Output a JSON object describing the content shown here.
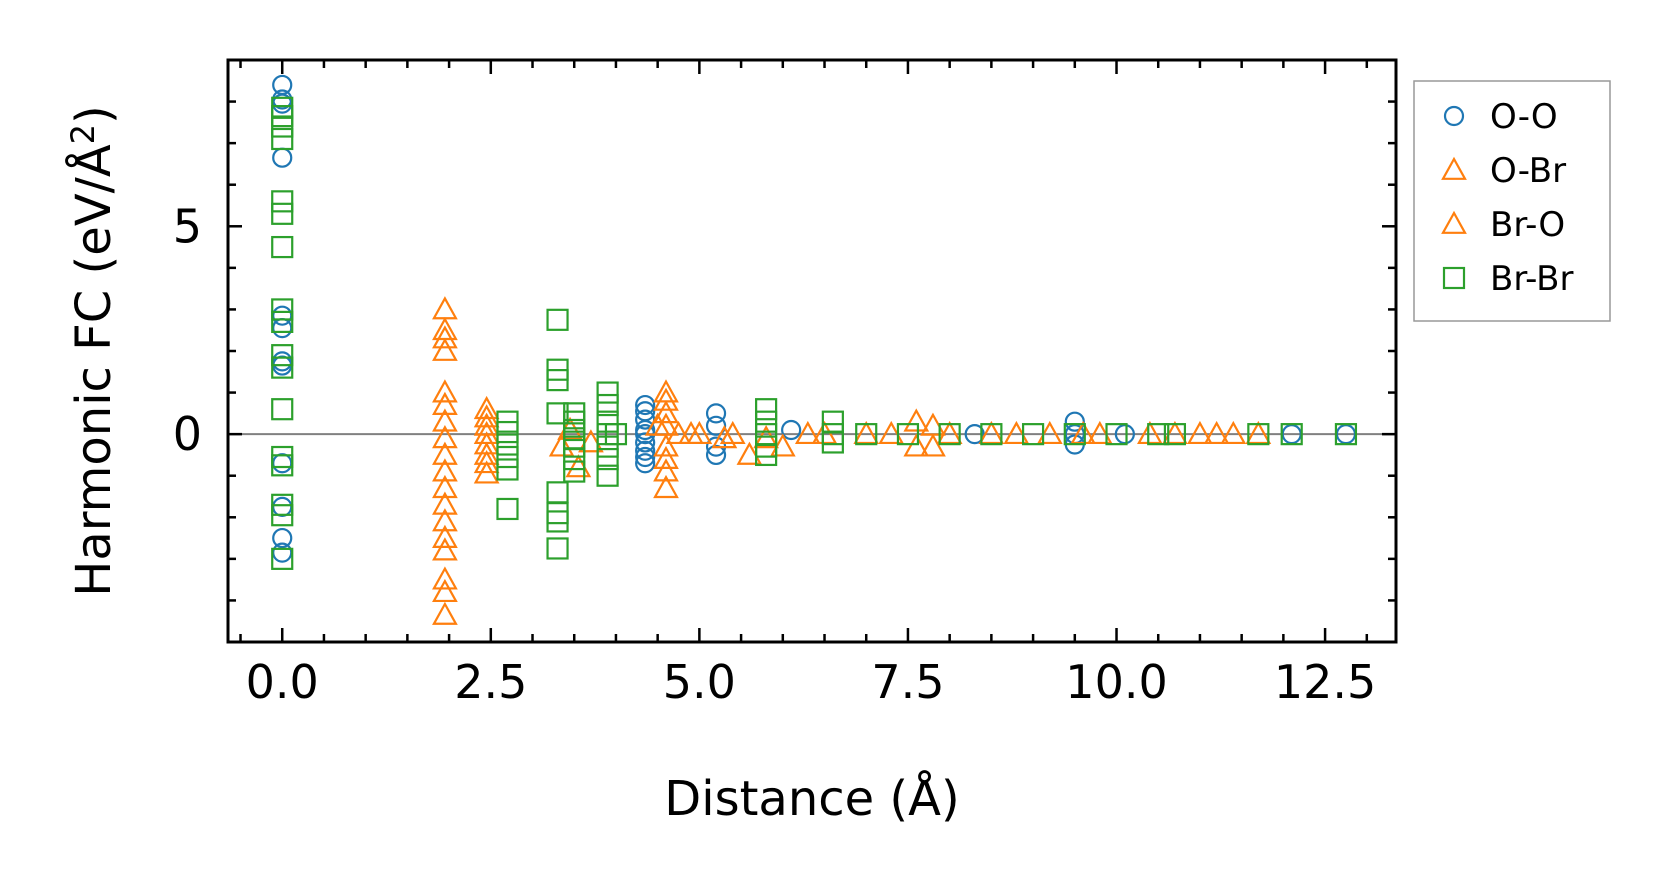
{
  "chart_data": {
    "type": "scatter",
    "title": "",
    "xlabel": "Distance (Å)",
    "ylabel_main": "Harmonic FC (eV/Å",
    "ylabel_sup": "2",
    "ylabel_close": ")",
    "xlim": [
      -0.65,
      13.35
    ],
    "ylim": [
      -5.0,
      9.0
    ],
    "xticks": [
      0.0,
      2.5,
      5.0,
      7.5,
      10.0,
      12.5
    ],
    "xtick_labels": [
      "0.0",
      "2.5",
      "5.0",
      "7.5",
      "10.0",
      "12.5"
    ],
    "yticks": [
      0,
      5
    ],
    "ytick_labels": [
      "0",
      "5"
    ],
    "zero_line": true,
    "legend_location": "outside-right-top",
    "series": [
      {
        "name": "O-O",
        "marker": "circle",
        "color": "#1f77b4",
        "x": [
          0,
          0,
          0,
          0,
          0,
          0,
          0,
          0,
          0,
          0,
          0,
          0,
          4.35,
          4.35,
          4.35,
          4.35,
          4.35,
          4.35,
          4.35,
          4.35,
          4.35,
          5.2,
          5.2,
          5.2,
          5.2,
          6.1,
          8.3,
          9.5,
          9.5,
          9.5,
          10.1,
          12.1,
          12.75
        ],
        "y": [
          8.4,
          8.05,
          7.95,
          6.65,
          2.85,
          2.55,
          1.75,
          1.65,
          -0.7,
          -1.75,
          -2.5,
          -2.85,
          0.7,
          0.55,
          0.35,
          0.1,
          0.0,
          -0.2,
          -0.4,
          -0.55,
          -0.7,
          0.5,
          0.2,
          -0.3,
          -0.5,
          0.1,
          0.0,
          0.3,
          0.0,
          -0.25,
          0.0,
          0.0,
          0.0
        ]
      },
      {
        "name": "O-Br",
        "marker": "triangle",
        "color": "#ff7f0e",
        "x": [
          1.95,
          1.95,
          1.95,
          1.95,
          1.95,
          1.95,
          1.95,
          1.95,
          1.95,
          1.95,
          1.95,
          1.95,
          1.95,
          1.95,
          1.95,
          1.95,
          1.95,
          1.95,
          2.45,
          2.45,
          2.45,
          2.45,
          2.45,
          2.45,
          2.45,
          2.45,
          3.35,
          3.55,
          4.6,
          4.6,
          4.6,
          4.6,
          4.6,
          4.6,
          4.6,
          4.6,
          4.75,
          5.0,
          5.3,
          5.6,
          6.0,
          6.3,
          7.3,
          7.6,
          7.6,
          7.8,
          7.8,
          8.5,
          9.2,
          9.8,
          10.7,
          11.0,
          11.2,
          11.4,
          11.7
        ],
        "y": [
          3.0,
          2.5,
          2.3,
          2.0,
          1.0,
          0.7,
          0.3,
          -0.1,
          -0.5,
          -0.9,
          -1.3,
          -1.7,
          -2.1,
          -2.5,
          -2.8,
          -3.5,
          -3.8,
          -4.35,
          0.6,
          0.4,
          0.2,
          0.0,
          -0.25,
          -0.5,
          -0.7,
          -0.95,
          -0.3,
          -0.8,
          1.0,
          0.8,
          0.5,
          0.2,
          -0.3,
          -0.6,
          -0.9,
          -1.3,
          0.0,
          0.0,
          -0.1,
          -0.5,
          -0.3,
          0.0,
          0.0,
          0.3,
          -0.3,
          0.2,
          -0.3,
          0.0,
          0.0,
          0.0,
          0.0,
          0.0,
          0.0,
          0.0,
          0.0
        ]
      },
      {
        "name": "Br-O",
        "marker": "triangle",
        "color": "#ff7f0e",
        "x": [
          3.45,
          3.7,
          4.5,
          4.9,
          5.4,
          5.8,
          6.5,
          7.0,
          8.0,
          8.8,
          9.6,
          10.4
        ],
        "y": [
          0.1,
          -0.2,
          0.2,
          0.0,
          0.0,
          -0.1,
          0.0,
          0.0,
          0.0,
          0.0,
          0.0,
          0.0
        ]
      },
      {
        "name": "Br-Br",
        "marker": "square",
        "color": "#2ca02c",
        "x": [
          0,
          0,
          0,
          0,
          0,
          0,
          0,
          0,
          0,
          0,
          0,
          0,
          0,
          0,
          0,
          0,
          0,
          2.7,
          2.7,
          2.7,
          2.7,
          2.7,
          2.7,
          3.3,
          3.3,
          3.3,
          3.3,
          3.3,
          3.3,
          3.3,
          3.3,
          3.5,
          3.5,
          3.5,
          3.5,
          3.5,
          3.5,
          3.5,
          3.9,
          3.9,
          3.9,
          3.9,
          3.9,
          3.9,
          3.9,
          4.0,
          5.8,
          5.8,
          5.8,
          5.8,
          5.8,
          6.6,
          6.6,
          6.6,
          7.0,
          7.5,
          8.0,
          8.5,
          9.0,
          9.5,
          10.0,
          10.5,
          10.7,
          11.7,
          12.1,
          12.75
        ],
        "y": [
          7.85,
          7.65,
          7.4,
          7.1,
          5.6,
          5.3,
          4.5,
          3.0,
          2.7,
          1.9,
          1.6,
          0.6,
          -0.55,
          -0.75,
          -1.7,
          -1.95,
          -3.0,
          0.3,
          0.05,
          -0.25,
          -0.55,
          -0.85,
          -1.8,
          2.75,
          1.55,
          1.3,
          0.5,
          -1.4,
          -1.9,
          -2.1,
          -2.75,
          0.5,
          0.3,
          0.1,
          -0.1,
          -0.3,
          -0.6,
          -0.9,
          1.0,
          0.7,
          0.3,
          0.0,
          -0.3,
          -0.6,
          -1.0,
          0.0,
          0.6,
          0.3,
          0.0,
          -0.3,
          -0.5,
          0.3,
          0.0,
          -0.2,
          0.0,
          0.0,
          0.0,
          0.0,
          0.0,
          0.0,
          0.0,
          0.0,
          0.0,
          0.0,
          0.0,
          0.0
        ]
      }
    ]
  }
}
